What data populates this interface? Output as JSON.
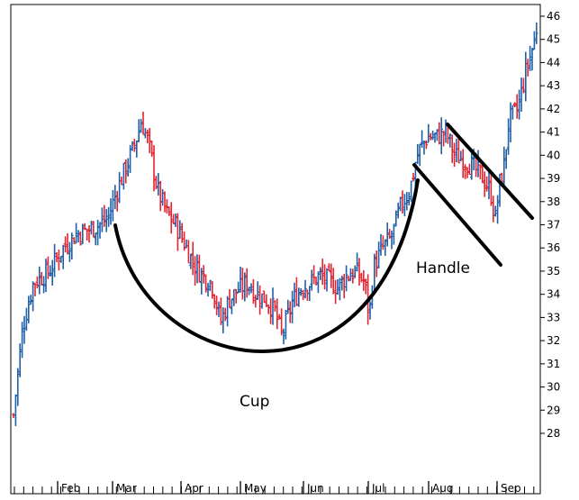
{
  "chart_data": {
    "type": "ohlc",
    "title": "",
    "xlabel": "",
    "ylabel": "",
    "ylim": [
      27,
      46.5
    ],
    "grid": false,
    "legend": "none",
    "up_color": "#1f5fa8",
    "down_color": "#e8222f",
    "month_labels": [
      "Feb",
      "Mar",
      "Apr",
      "May",
      "Jun",
      "Jul",
      "Aug",
      "Sep"
    ],
    "y_tick_labels": [
      "28",
      "29",
      "30",
      "31",
      "32",
      "33",
      "34",
      "35",
      "36",
      "37",
      "38",
      "39",
      "40",
      "41",
      "42",
      "43",
      "44",
      "45",
      "46"
    ],
    "y_tick_values": [
      28,
      29,
      30,
      31,
      32,
      33,
      34,
      35,
      36,
      37,
      38,
      39,
      40,
      41,
      42,
      43,
      44,
      45,
      46
    ],
    "price_path": [
      [
        0,
        28.8
      ],
      [
        10,
        32.5
      ],
      [
        22,
        34.5
      ],
      [
        40,
        35
      ],
      [
        55,
        36
      ],
      [
        70,
        36.6
      ],
      [
        85,
        36.8
      ],
      [
        95,
        37
      ],
      [
        105,
        37.3
      ],
      [
        115,
        38.5
      ],
      [
        125,
        39.5
      ],
      [
        135,
        40.5
      ],
      [
        142,
        41.5
      ],
      [
        150,
        40.5
      ],
      [
        160,
        38.5
      ],
      [
        170,
        37.5
      ],
      [
        180,
        37
      ],
      [
        190,
        36.2
      ],
      [
        200,
        35.3
      ],
      [
        210,
        34.8
      ],
      [
        220,
        34.5
      ],
      [
        230,
        32.8
      ],
      [
        240,
        33.8
      ],
      [
        250,
        34.2
      ],
      [
        260,
        34.5
      ],
      [
        270,
        34
      ],
      [
        280,
        33.8
      ],
      [
        290,
        33.3
      ],
      [
        298,
        32.2
      ],
      [
        310,
        33.7
      ],
      [
        320,
        34.3
      ],
      [
        330,
        34.5
      ],
      [
        340,
        34.8
      ],
      [
        350,
        34.6
      ],
      [
        360,
        34.3
      ],
      [
        370,
        34.8
      ],
      [
        380,
        35
      ],
      [
        390,
        34.5
      ],
      [
        395,
        33
      ],
      [
        400,
        35.2
      ],
      [
        410,
        36
      ],
      [
        420,
        36.5
      ],
      [
        430,
        37.8
      ],
      [
        440,
        38.5
      ],
      [
        450,
        40.2
      ],
      [
        460,
        40.8
      ],
      [
        470,
        40.8
      ],
      [
        480,
        41
      ],
      [
        490,
        40
      ],
      [
        500,
        39.8
      ],
      [
        510,
        39.5
      ],
      [
        520,
        39.1
      ],
      [
        530,
        38.4
      ],
      [
        535,
        37.2
      ],
      [
        540,
        38.8
      ],
      [
        545,
        39.6
      ],
      [
        550,
        41.5
      ],
      [
        560,
        42
      ],
      [
        570,
        43.8
      ],
      [
        575,
        44.4
      ],
      [
        580,
        45.2
      ],
      [
        583,
        46.2
      ]
    ],
    "annotations": {
      "cup_label": "Cup",
      "handle_label": "Handle"
    }
  }
}
